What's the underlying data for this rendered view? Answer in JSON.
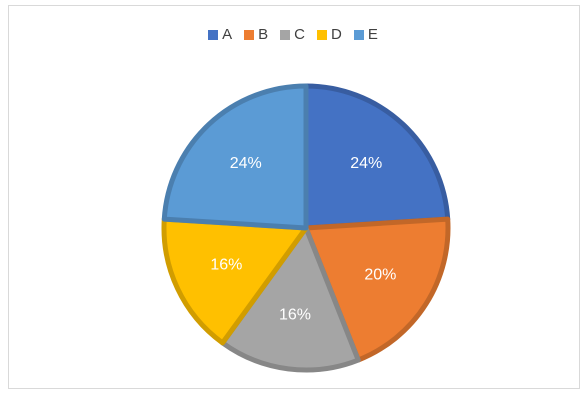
{
  "chart_data": {
    "type": "pie",
    "categories": [
      "A",
      "B",
      "C",
      "D",
      "E"
    ],
    "values": [
      24,
      20,
      16,
      16,
      24
    ],
    "labels": [
      "24%",
      "20%",
      "16%",
      "16%",
      "24%"
    ],
    "colors": [
      "#4472C4",
      "#ED7D31",
      "#A5A5A5",
      "#FFC000",
      "#5B9BD5"
    ],
    "title": "",
    "legend_position": "top"
  }
}
